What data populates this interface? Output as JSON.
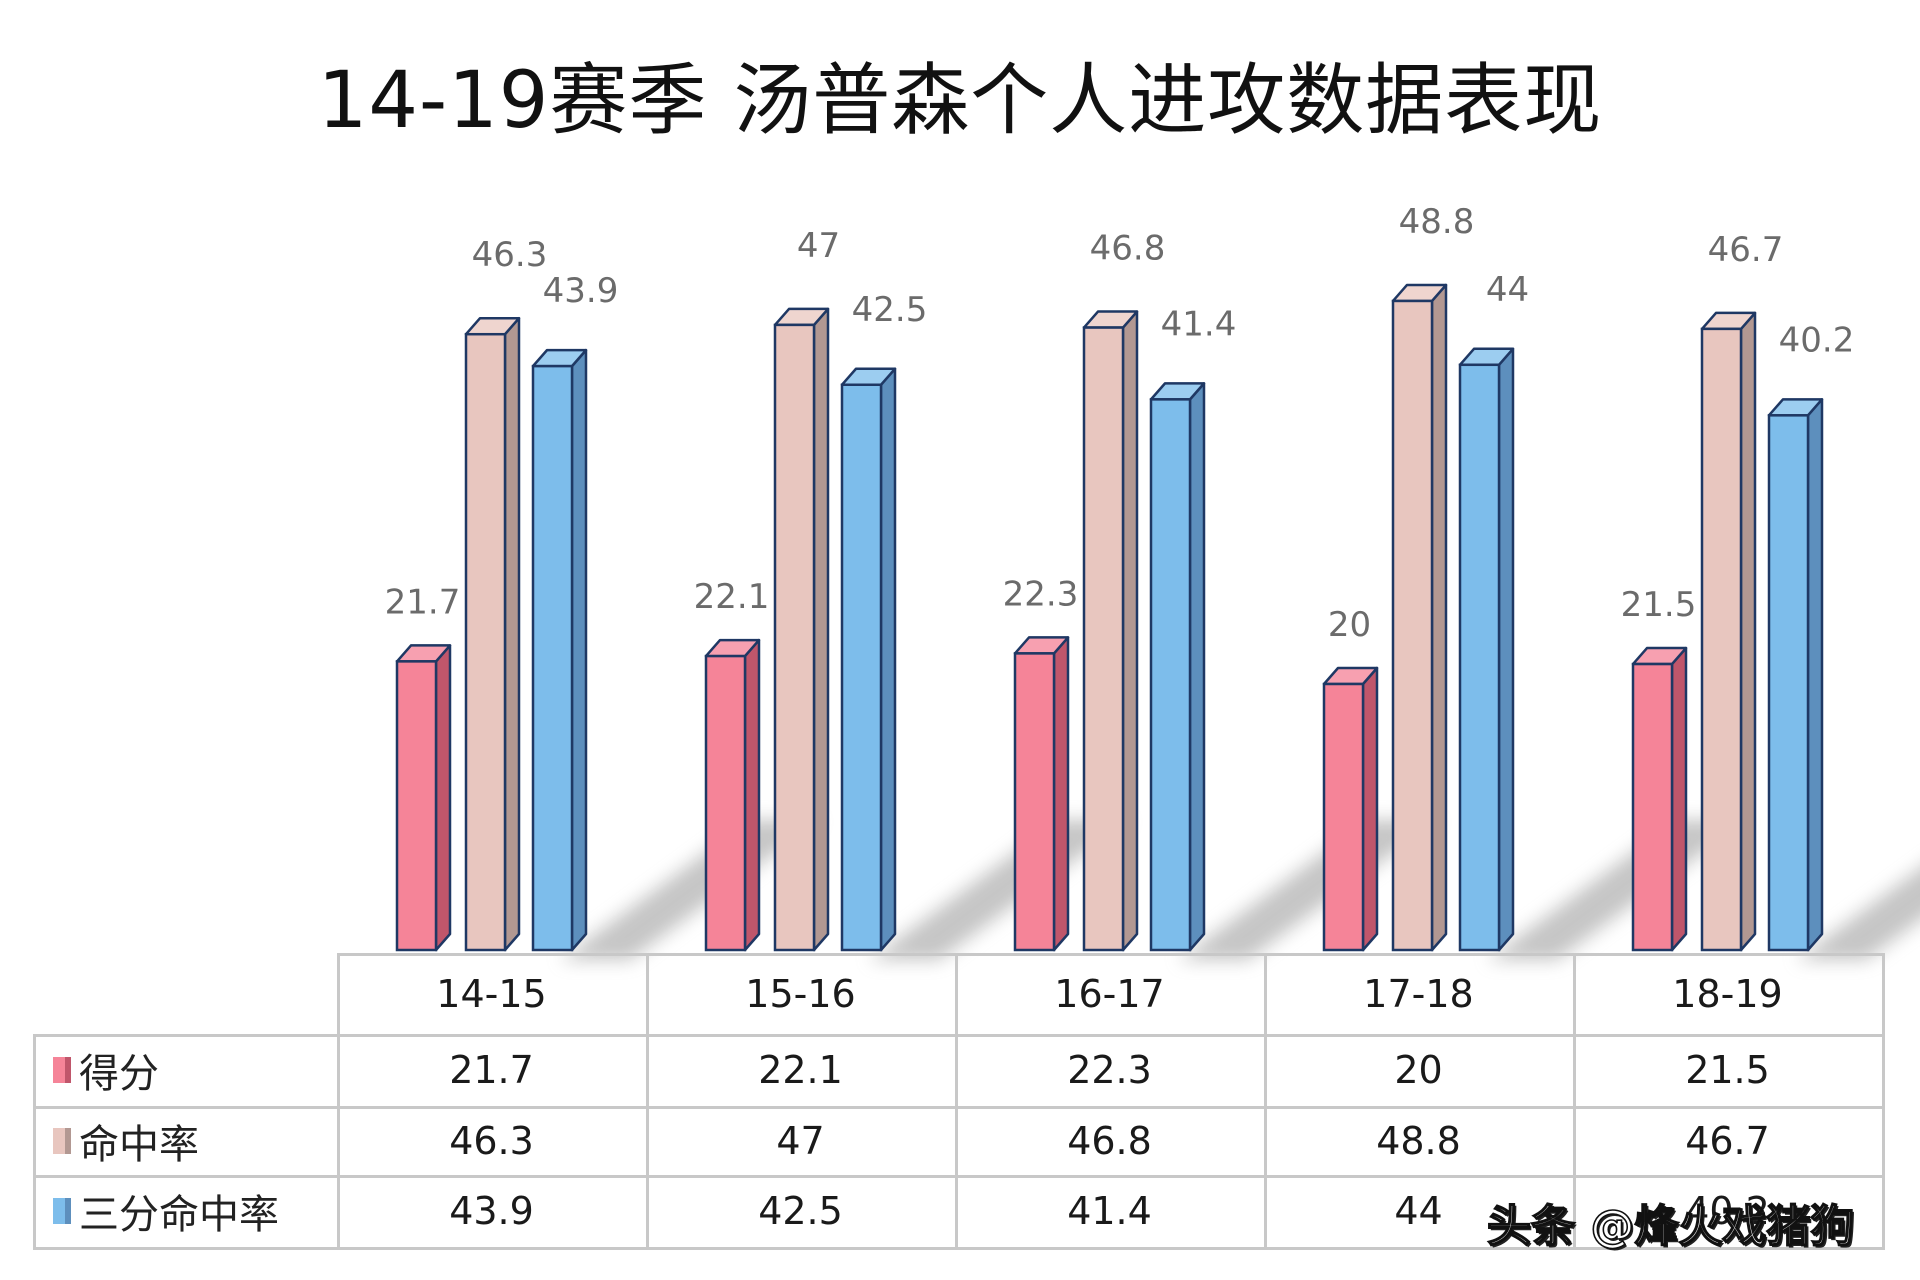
{
  "title": "14-19赛季 汤普森个人进攻数据表现",
  "colors": {
    "score_front": "#f58498",
    "score_side": "#c0566b",
    "score_top": "#f7a0b0",
    "fg_front": "#e8c6bf",
    "fg_side": "#b29892",
    "fg_top": "#efd5cf",
    "three_front": "#7dbdeb",
    "three_side": "#5d8fbd",
    "three_top": "#9ccdf0",
    "outline": "#1f3864",
    "label": "#6b6b6b",
    "grid": "#c8c8c8"
  },
  "table": {
    "headers": [
      "14-15",
      "15-16",
      "16-17",
      "17-18",
      "18-19"
    ],
    "rows": [
      {
        "label": "得分",
        "values": [
          "21.7",
          "22.1",
          "22.3",
          "20",
          "21.5"
        ]
      },
      {
        "label": "命中率",
        "values": [
          "46.3",
          "47",
          "46.8",
          "48.8",
          "46.7"
        ]
      },
      {
        "label": "三分命中率",
        "values": [
          "43.9",
          "42.5",
          "41.4",
          "44",
          "40.2"
        ]
      }
    ]
  },
  "watermark": "头条 @烽火戏猪狗",
  "chart_data": {
    "type": "bar",
    "title": "14-19赛季 汤普森个人进攻数据表现",
    "categories": [
      "14-15",
      "15-16",
      "16-17",
      "17-18",
      "18-19"
    ],
    "series": [
      {
        "name": "得分",
        "values": [
          21.7,
          22.1,
          22.3,
          20,
          21.5
        ]
      },
      {
        "name": "命中率",
        "values": [
          46.3,
          47,
          46.8,
          48.8,
          46.7
        ]
      },
      {
        "name": "三分命中率",
        "values": [
          43.9,
          42.5,
          41.4,
          44,
          40.2
        ]
      }
    ],
    "xlabel": "",
    "ylabel": "",
    "ylim": [
      0,
      50
    ],
    "grid": false,
    "legend_position": "data-table",
    "style": "3d-clustered-column with data table"
  }
}
